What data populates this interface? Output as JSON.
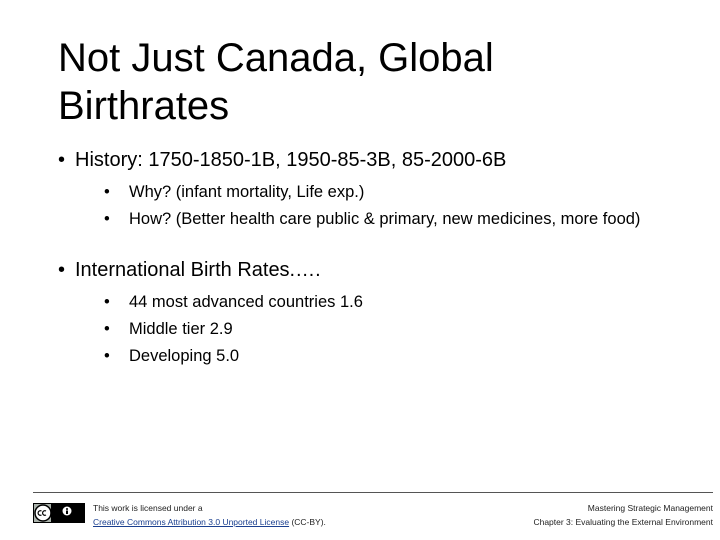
{
  "title": "Not Just Canada, Global Birthrates",
  "bullets": [
    {
      "text": "History: 1750-1850-1B, 1950-85-3B, 85-2000-6B",
      "sub": [
        "Why? (infant mortality, Life exp.)",
        "How? (Better health care public & primary, new medicines, more food)"
      ]
    },
    {
      "text": "International Birth Rates.….",
      "sub": [
        "44 most advanced countries 1.6",
        "Middle tier 2.9",
        "Developing 5.0"
      ]
    }
  ],
  "footer": {
    "license_prefix": "This work is licensed under a",
    "license_link": "Creative Commons Attribution 3.0 Unported License",
    "license_suffix": "(CC-BY).",
    "course": "Mastering Strategic Management",
    "chapter": "Chapter 3: Evaluating the External Environment"
  }
}
